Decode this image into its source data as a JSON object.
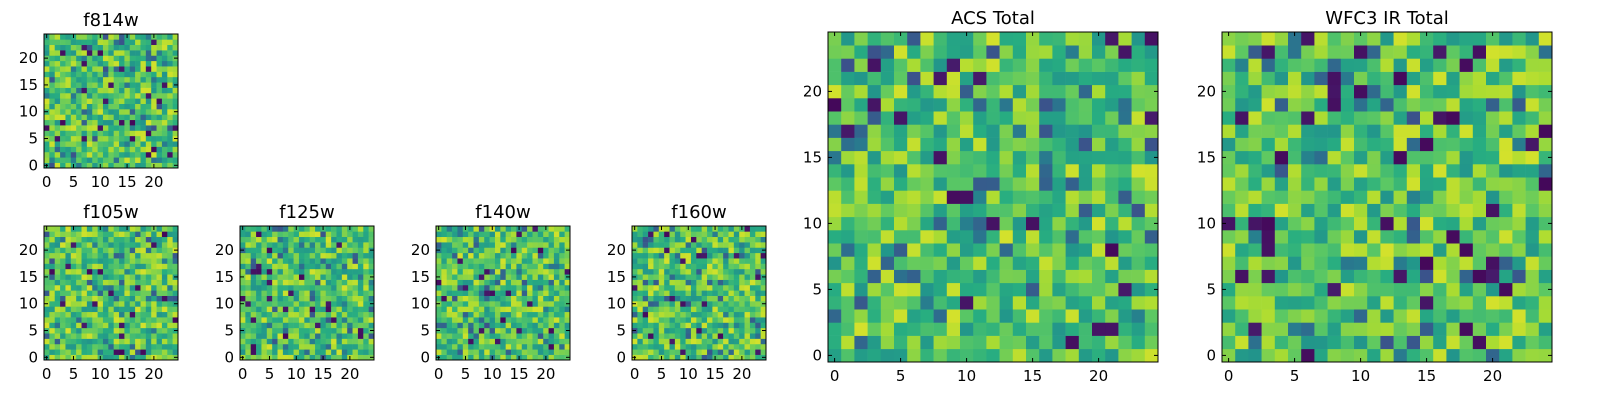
{
  "chart_data": [
    {
      "type": "heatmap",
      "title": "f814w",
      "colormap": "viridis",
      "seed": 814,
      "size": 25,
      "block": 1,
      "xticks": [
        "0",
        "5",
        "10",
        "15",
        "20"
      ],
      "yticks": [
        "0",
        "5",
        "10",
        "15",
        "20"
      ],
      "xlim": [
        -0.5,
        24.5
      ],
      "ylim": [
        -0.5,
        24.5
      ]
    },
    {
      "type": "heatmap",
      "title": "f105w",
      "colormap": "viridis",
      "seed": 105,
      "size": 25,
      "block": 1,
      "xticks": [
        "0",
        "5",
        "10",
        "15",
        "20"
      ],
      "yticks": [
        "0",
        "5",
        "10",
        "15",
        "20"
      ],
      "xlim": [
        -0.5,
        24.5
      ],
      "ylim": [
        -0.5,
        24.5
      ]
    },
    {
      "type": "heatmap",
      "title": "f125w",
      "colormap": "viridis",
      "seed": 125,
      "size": 25,
      "block": 1,
      "xticks": [
        "0",
        "5",
        "10",
        "15",
        "20"
      ],
      "yticks": [
        "0",
        "5",
        "10",
        "15",
        "20"
      ],
      "xlim": [
        -0.5,
        24.5
      ],
      "ylim": [
        -0.5,
        24.5
      ]
    },
    {
      "type": "heatmap",
      "title": "f140w",
      "colormap": "viridis",
      "seed": 140,
      "size": 25,
      "block": 1,
      "xticks": [
        "0",
        "5",
        "10",
        "15",
        "20"
      ],
      "yticks": [
        "0",
        "5",
        "10",
        "15",
        "20"
      ],
      "xlim": [
        -0.5,
        24.5
      ],
      "ylim": [
        -0.5,
        24.5
      ]
    },
    {
      "type": "heatmap",
      "title": "f160w",
      "colormap": "viridis",
      "seed": 160,
      "size": 25,
      "block": 1,
      "xticks": [
        "0",
        "5",
        "10",
        "15",
        "20"
      ],
      "yticks": [
        "0",
        "5",
        "10",
        "15",
        "20"
      ],
      "xlim": [
        -0.5,
        24.5
      ],
      "ylim": [
        -0.5,
        24.5
      ]
    },
    {
      "type": "heatmap",
      "title": "ACS Total",
      "colormap": "viridis",
      "seed": 2001,
      "size": 25,
      "block": 1,
      "xticks": [
        "0",
        "5",
        "10",
        "15",
        "20"
      ],
      "yticks": [
        "0",
        "5",
        "10",
        "15",
        "20"
      ],
      "xlim": [
        -0.5,
        24.5
      ],
      "ylim": [
        -0.5,
        24.5
      ]
    },
    {
      "type": "heatmap",
      "title": "WFC3 IR Total",
      "colormap": "viridis",
      "seed": 3001,
      "size": 25,
      "block": 1,
      "xticks": [
        "0",
        "5",
        "10",
        "15",
        "20"
      ],
      "yticks": [
        "0",
        "5",
        "10",
        "15",
        "20"
      ],
      "xlim": [
        -0.5,
        24.5
      ],
      "ylim": [
        -0.5,
        24.5
      ]
    }
  ]
}
